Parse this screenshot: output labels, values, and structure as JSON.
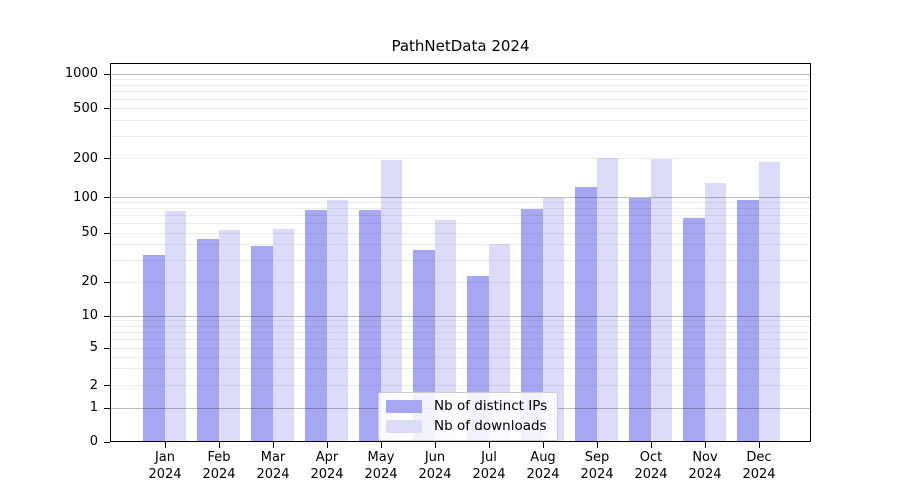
{
  "title": "PathNetData 2024",
  "chart_data": {
    "type": "bar",
    "categories": [
      "Jan",
      "Feb",
      "Mar",
      "Apr",
      "May",
      "Jun",
      "Jul",
      "Aug",
      "Sep",
      "Oct",
      "Nov",
      "Dec"
    ],
    "year_label": "2024",
    "series": [
      {
        "name": "Nb of distinct IPs",
        "color": "#a6a6f2",
        "values": [
          33,
          44,
          39,
          77,
          78,
          36,
          22,
          79,
          120,
          99,
          66,
          94
        ]
      },
      {
        "name": "Nb of downloads",
        "color": "#dcdcfa",
        "values": [
          76,
          52,
          54,
          95,
          192,
          64,
          40,
          98,
          200,
          196,
          128,
          186
        ]
      }
    ],
    "yticks": [
      0,
      1,
      2,
      5,
      10,
      20,
      50,
      100,
      200,
      500,
      1000
    ],
    "yscale": "symlog",
    "ylim": [
      0,
      1250
    ],
    "xlabel": "",
    "ylabel": "",
    "grid": "both (decade gridlines dark, minor gridlines faint, drawn above bars)",
    "legend": {
      "entries": [
        "Nb of distinct IPs",
        "Nb of downloads"
      ],
      "position": "lower-center"
    }
  }
}
